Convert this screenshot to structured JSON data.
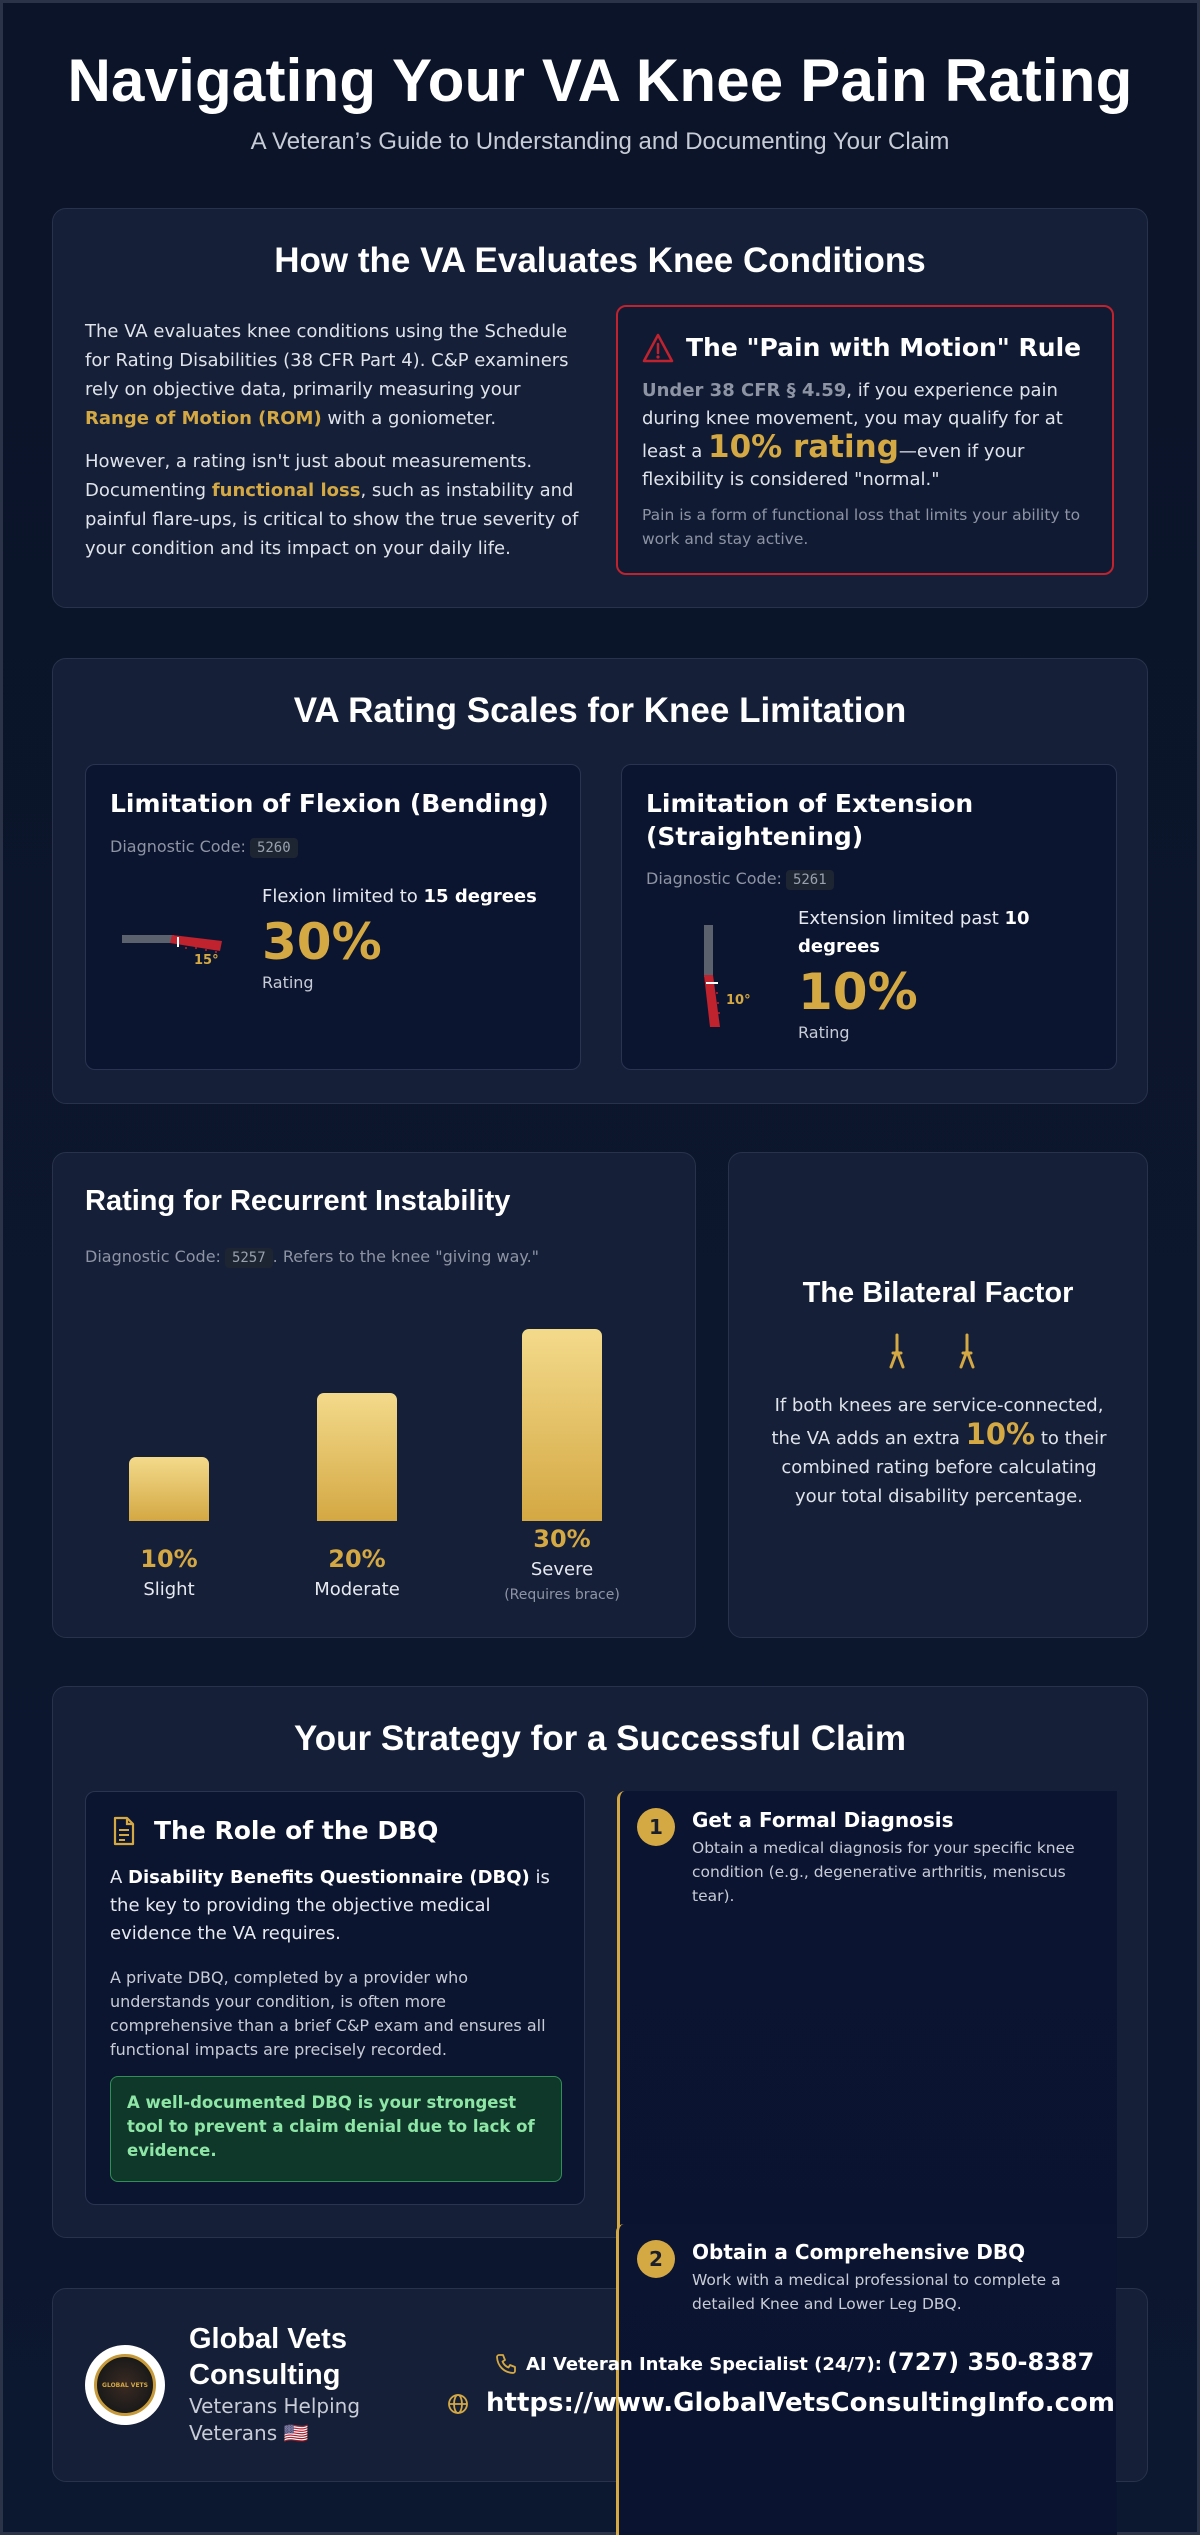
{
  "header": {
    "title": "Navigating Your VA Knee Pain Rating",
    "subtitle": "A Veteran’s Guide to Understanding and Documenting Your Claim"
  },
  "evaluation": {
    "title": "How the VA Evaluates Knee Conditions",
    "p1_a": "The VA evaluates knee conditions using the Schedule for Rating Disabilities (38 CFR Part 4). C&P examiners rely on objective data, primarily measuring your ",
    "p1_hl": "Range of Motion (ROM)",
    "p1_b": " with a goniometer.",
    "p2_a": "However, a rating isn't just about measurements. Documenting ",
    "p2_hl": "functional loss",
    "p2_b": ", such as instability and painful flare-ups, is critical to show the true severity of your condition and its impact on your daily life.",
    "pain_rule": {
      "title": "The \"Pain with Motion\" Rule",
      "cfr": "Under 38 CFR § 4.59",
      "body_a": ", if you experience pain during knee movement, you may qualify for at least a ",
      "big": "10% rating",
      "body_b": "—even if your flexibility is considered \"normal.\"",
      "note": "Pain is a form of functional loss that limits your ability to work and stay active."
    }
  },
  "scales": {
    "title": "VA Rating Scales for Knee Limitation",
    "flexion": {
      "title": "Limitation of Flexion (Bending)",
      "code_label": "Diagnostic Code:",
      "code": "5260",
      "limit_a": "Flexion limited to ",
      "limit_b": "15 degrees",
      "degree_label": "15°",
      "pct": "30%",
      "rating_label": "Rating"
    },
    "extension": {
      "title": "Limitation of Extension (Straightening)",
      "code_label": "Diagnostic Code:",
      "code": "5261",
      "limit_a": "Extension limited past ",
      "limit_b": "10 degrees",
      "degree_label": "10°",
      "pct": "10%",
      "rating_label": "Rating"
    }
  },
  "instability": {
    "title": "Rating for Recurrent Instability",
    "code_label": "Diagnostic Code:",
    "code": "5257",
    "code_note": ". Refers to the knee \"giving way.\"",
    "bars": [
      {
        "pct": "10%",
        "label": "Slight",
        "note": "",
        "value": 10
      },
      {
        "pct": "20%",
        "label": "Moderate",
        "note": "",
        "value": 20
      },
      {
        "pct": "30%",
        "label": "Severe",
        "note": "(Requires brace)",
        "value": 30
      }
    ]
  },
  "bilateral": {
    "title": "The Bilateral Factor",
    "text_a": "If both knees are service-connected, the VA adds an extra ",
    "big": "10%",
    "text_b": " to their combined rating before calculating your total disability percentage."
  },
  "strategy": {
    "title": "Your Strategy for a Successful Claim",
    "dbq": {
      "title": "The Role of the DBQ",
      "p1_a": "A ",
      "p1_strong": "Disability Benefits Questionnaire (DBQ)",
      "p1_b": " is the key to providing the objective medical evidence the VA requires.",
      "p2": "A private DBQ, completed by a provider who understands your condition, is often more comprehensive than a brief C&P exam and ensures all functional impacts are precisely recorded.",
      "callout": "A well-documented DBQ is your strongest tool to prevent a claim denial due to lack of evidence."
    },
    "steps": [
      {
        "num": "1",
        "title": "Get a Formal Diagnosis",
        "desc": "Obtain a medical diagnosis for your specific knee condition (e.g., degenerative arthritis, meniscus tear)."
      },
      {
        "num": "2",
        "title": "Obtain a Comprehensive DBQ",
        "desc": "Work with a medical professional to complete a detailed Knee and Lower Leg DBQ."
      }
    ]
  },
  "footer": {
    "name": "Global Vets Consulting",
    "tagline": "Veterans Helping Veterans 🇺🇸",
    "phone_label": "AI Veteran Intake Specialist (24/7):",
    "phone": "(727) 350-8387",
    "website": "https://www.GlobalVetsConsultingInfo.com",
    "logo_text": "GLOBAL VETS"
  },
  "colors": {
    "accent": "#d4a843",
    "danger": "#c0222e",
    "success": "#2f8f56",
    "card": "#151f38"
  }
}
